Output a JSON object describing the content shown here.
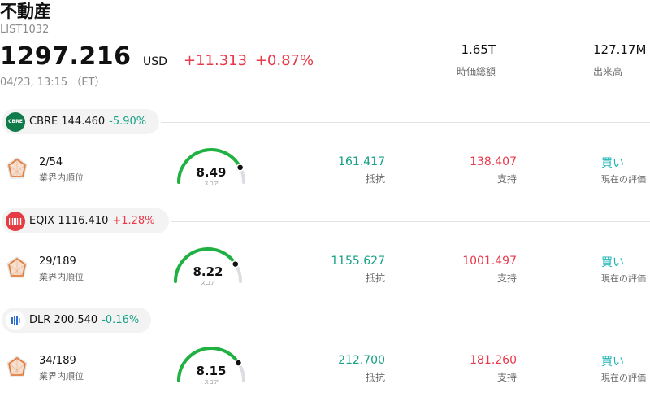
{
  "header": {
    "title": "不動産",
    "code": "LIST1032",
    "price": "1297.216",
    "currency": "USD",
    "change": "+11.313",
    "change_pct": "+0.87%",
    "timestamp": "04/23, 13:15 （ET）"
  },
  "stats": [
    {
      "value": "1.65T",
      "label": "時価総額"
    },
    {
      "value": "127.17M",
      "label": "出来高"
    }
  ],
  "stocks": [
    {
      "ticker": "CBRE",
      "price": "144.460",
      "change": "-5.90%",
      "direction": "down",
      "logo_text": "CBRE",
      "logo_color": "#0f7a4a",
      "rank": "2/54",
      "rank_label": "業界内順位",
      "score": "8.49",
      "score_label": "スコア",
      "score_fraction": 0.85,
      "resistance": "161.417",
      "resistance_label": "抵抗",
      "support": "138.407",
      "support_label": "支持",
      "evaluation": "買い",
      "evaluation_label": "現在の評価"
    },
    {
      "ticker": "EQIX",
      "price": "1116.410",
      "change": "+1.28%",
      "direction": "up",
      "logo_text": "",
      "logo_color": "#e53b42",
      "rank": "29/189",
      "rank_label": "業界内順位",
      "score": "8.22",
      "score_label": "スコア",
      "score_fraction": 0.82,
      "resistance": "1155.627",
      "resistance_label": "抵抗",
      "support": "1001.497",
      "support_label": "支持",
      "evaluation": "買い",
      "evaluation_label": "現在の評価"
    },
    {
      "ticker": "DLR",
      "price": "200.540",
      "change": "-0.16%",
      "direction": "down",
      "logo_text": "",
      "logo_color": "#2a6fd6",
      "rank": "34/189",
      "rank_label": "業界内順位",
      "score": "8.15",
      "score_label": "スコア",
      "score_fraction": 0.815,
      "resistance": "212.700",
      "resistance_label": "抵抗",
      "support": "181.260",
      "support_label": "支持",
      "evaluation": "買い",
      "evaluation_label": "現在の評価"
    }
  ],
  "colors": {
    "up": "#e8394a",
    "down": "#16a085",
    "gauge_fill": "#1fb141",
    "gauge_track": "#dcdde3",
    "rating": "#1ab3b3"
  }
}
